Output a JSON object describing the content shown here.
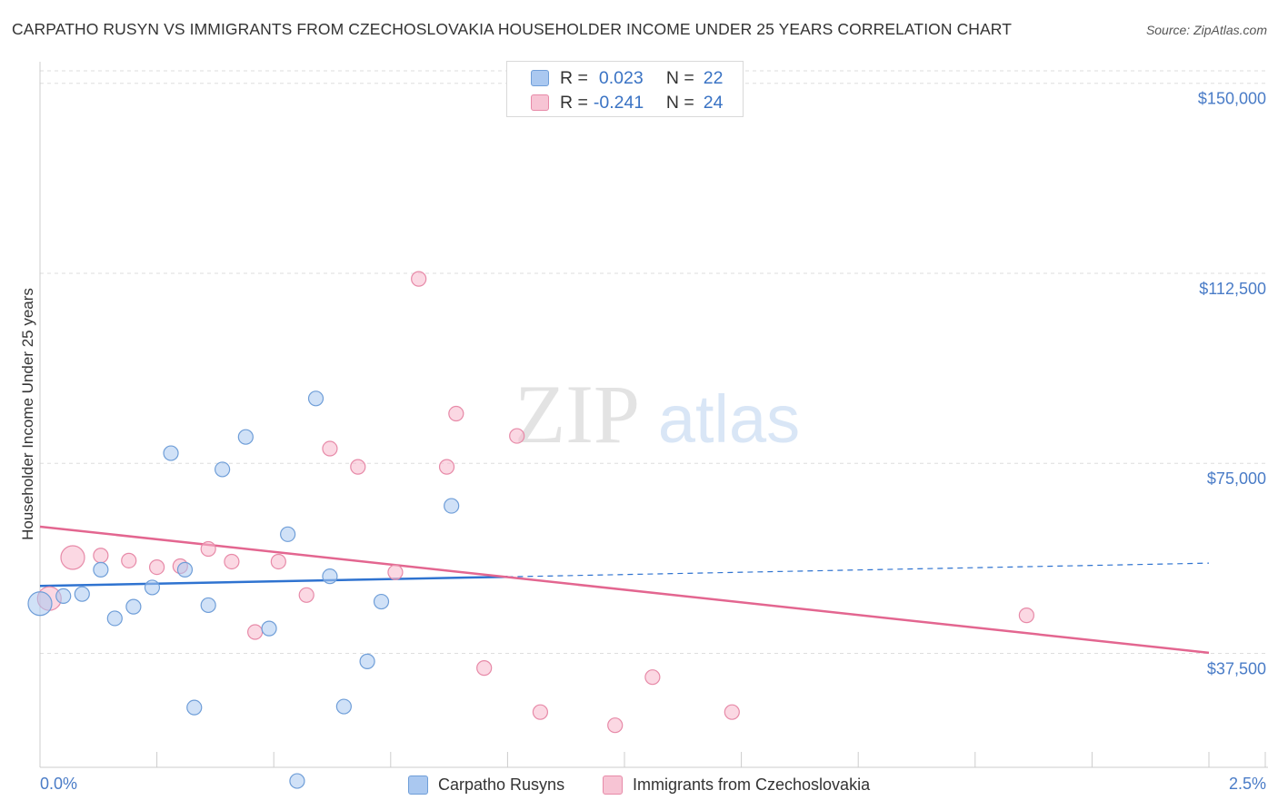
{
  "title": "CARPATHO RUSYN VS IMMIGRANTS FROM CZECHOSLOVAKIA HOUSEHOLDER INCOME UNDER 25 YEARS CORRELATION CHART",
  "source": "Source: ZipAtlas.com",
  "watermark": {
    "zip": "ZIP",
    "atlas": "atlas"
  },
  "legend": {
    "rows": [
      {
        "r_label": "R =",
        "r_value": "0.023",
        "n_label": "N =",
        "n_value": "22"
      },
      {
        "r_label": "R =",
        "r_value": "-0.241",
        "n_label": "N =",
        "n_value": "24"
      }
    ]
  },
  "bottom_legend": {
    "series1": "Carpatho Rusyns",
    "series2": "Immigrants from Czechoslovakia"
  },
  "colors": {
    "blue_fill": "#aac8f0",
    "blue_stroke": "#6f9ed8",
    "blue_line": "#2f73d0",
    "pink_fill": "#f7b8cc",
    "pink_stroke": "#e78aa8",
    "pink_line": "#e36690",
    "axis_text": "#4a7cc7",
    "grid": "#dddddd"
  },
  "chart_data": {
    "type": "scatter",
    "title": "CARPATHO RUSYN VS IMMIGRANTS FROM CZECHOSLOVAKIA HOUSEHOLDER INCOME UNDER 25 YEARS CORRELATION CHART",
    "xlabel": "",
    "ylabel": "Householder Income Under 25 years",
    "xlim": [
      0,
      2.5
    ],
    "ylim": [
      15000,
      153000
    ],
    "x_tick_labels": [
      "0.0%",
      "2.5%"
    ],
    "y_ticks": [
      {
        "value": 37500,
        "label": "$37,500"
      },
      {
        "value": 75000,
        "label": "$75,000"
      },
      {
        "value": 112500,
        "label": "$112,500"
      },
      {
        "value": 150000,
        "label": "$150,000"
      }
    ],
    "series": [
      {
        "name": "Carpatho Rusyns",
        "r": 0.023,
        "n": 22,
        "trend": {
          "x0": 0.0,
          "y0": 50800,
          "x_solid_end": 1.0,
          "x1": 2.5,
          "y1": 55300
        },
        "points": [
          {
            "x": 0.0,
            "y": 47300,
            "big": true
          },
          {
            "x": 0.05,
            "y": 48800
          },
          {
            "x": 0.09,
            "y": 49200
          },
          {
            "x": 0.13,
            "y": 54000
          },
          {
            "x": 0.16,
            "y": 44400
          },
          {
            "x": 0.2,
            "y": 46700
          },
          {
            "x": 0.24,
            "y": 50500
          },
          {
            "x": 0.28,
            "y": 77000
          },
          {
            "x": 0.31,
            "y": 54000
          },
          {
            "x": 0.33,
            "y": 26800
          },
          {
            "x": 0.36,
            "y": 47000
          },
          {
            "x": 0.39,
            "y": 73800
          },
          {
            "x": 0.44,
            "y": 80200
          },
          {
            "x": 0.49,
            "y": 42400
          },
          {
            "x": 0.53,
            "y": 61000
          },
          {
            "x": 0.55,
            "y": 12300
          },
          {
            "x": 0.59,
            "y": 87800
          },
          {
            "x": 0.62,
            "y": 52700
          },
          {
            "x": 0.65,
            "y": 27000
          },
          {
            "x": 0.7,
            "y": 35900
          },
          {
            "x": 0.73,
            "y": 47700
          },
          {
            "x": 0.88,
            "y": 66600
          }
        ]
      },
      {
        "name": "Immigrants from Czechoslovakia",
        "r": -0.241,
        "n": 24,
        "trend": {
          "x0": 0.0,
          "y0": 62500,
          "x1": 2.5,
          "y1": 37600
        },
        "points": [
          {
            "x": 0.02,
            "y": 48300,
            "big": true
          },
          {
            "x": 0.07,
            "y": 56400,
            "big": true
          },
          {
            "x": 0.13,
            "y": 56800
          },
          {
            "x": 0.19,
            "y": 55800
          },
          {
            "x": 0.25,
            "y": 54500
          },
          {
            "x": 0.3,
            "y": 54700
          },
          {
            "x": 0.36,
            "y": 58100
          },
          {
            "x": 0.41,
            "y": 55600
          },
          {
            "x": 0.46,
            "y": 41700
          },
          {
            "x": 0.51,
            "y": 55600
          },
          {
            "x": 0.57,
            "y": 49000
          },
          {
            "x": 0.62,
            "y": 77900
          },
          {
            "x": 0.68,
            "y": 74300
          },
          {
            "x": 0.76,
            "y": 53500
          },
          {
            "x": 0.81,
            "y": 111400
          },
          {
            "x": 0.87,
            "y": 74300
          },
          {
            "x": 0.89,
            "y": 84800
          },
          {
            "x": 0.95,
            "y": 34600
          },
          {
            "x": 1.02,
            "y": 80400
          },
          {
            "x": 1.07,
            "y": 25900
          },
          {
            "x": 1.23,
            "y": 23300
          },
          {
            "x": 1.31,
            "y": 32800
          },
          {
            "x": 1.48,
            "y": 25900
          },
          {
            "x": 2.11,
            "y": 45000
          }
        ]
      }
    ]
  }
}
